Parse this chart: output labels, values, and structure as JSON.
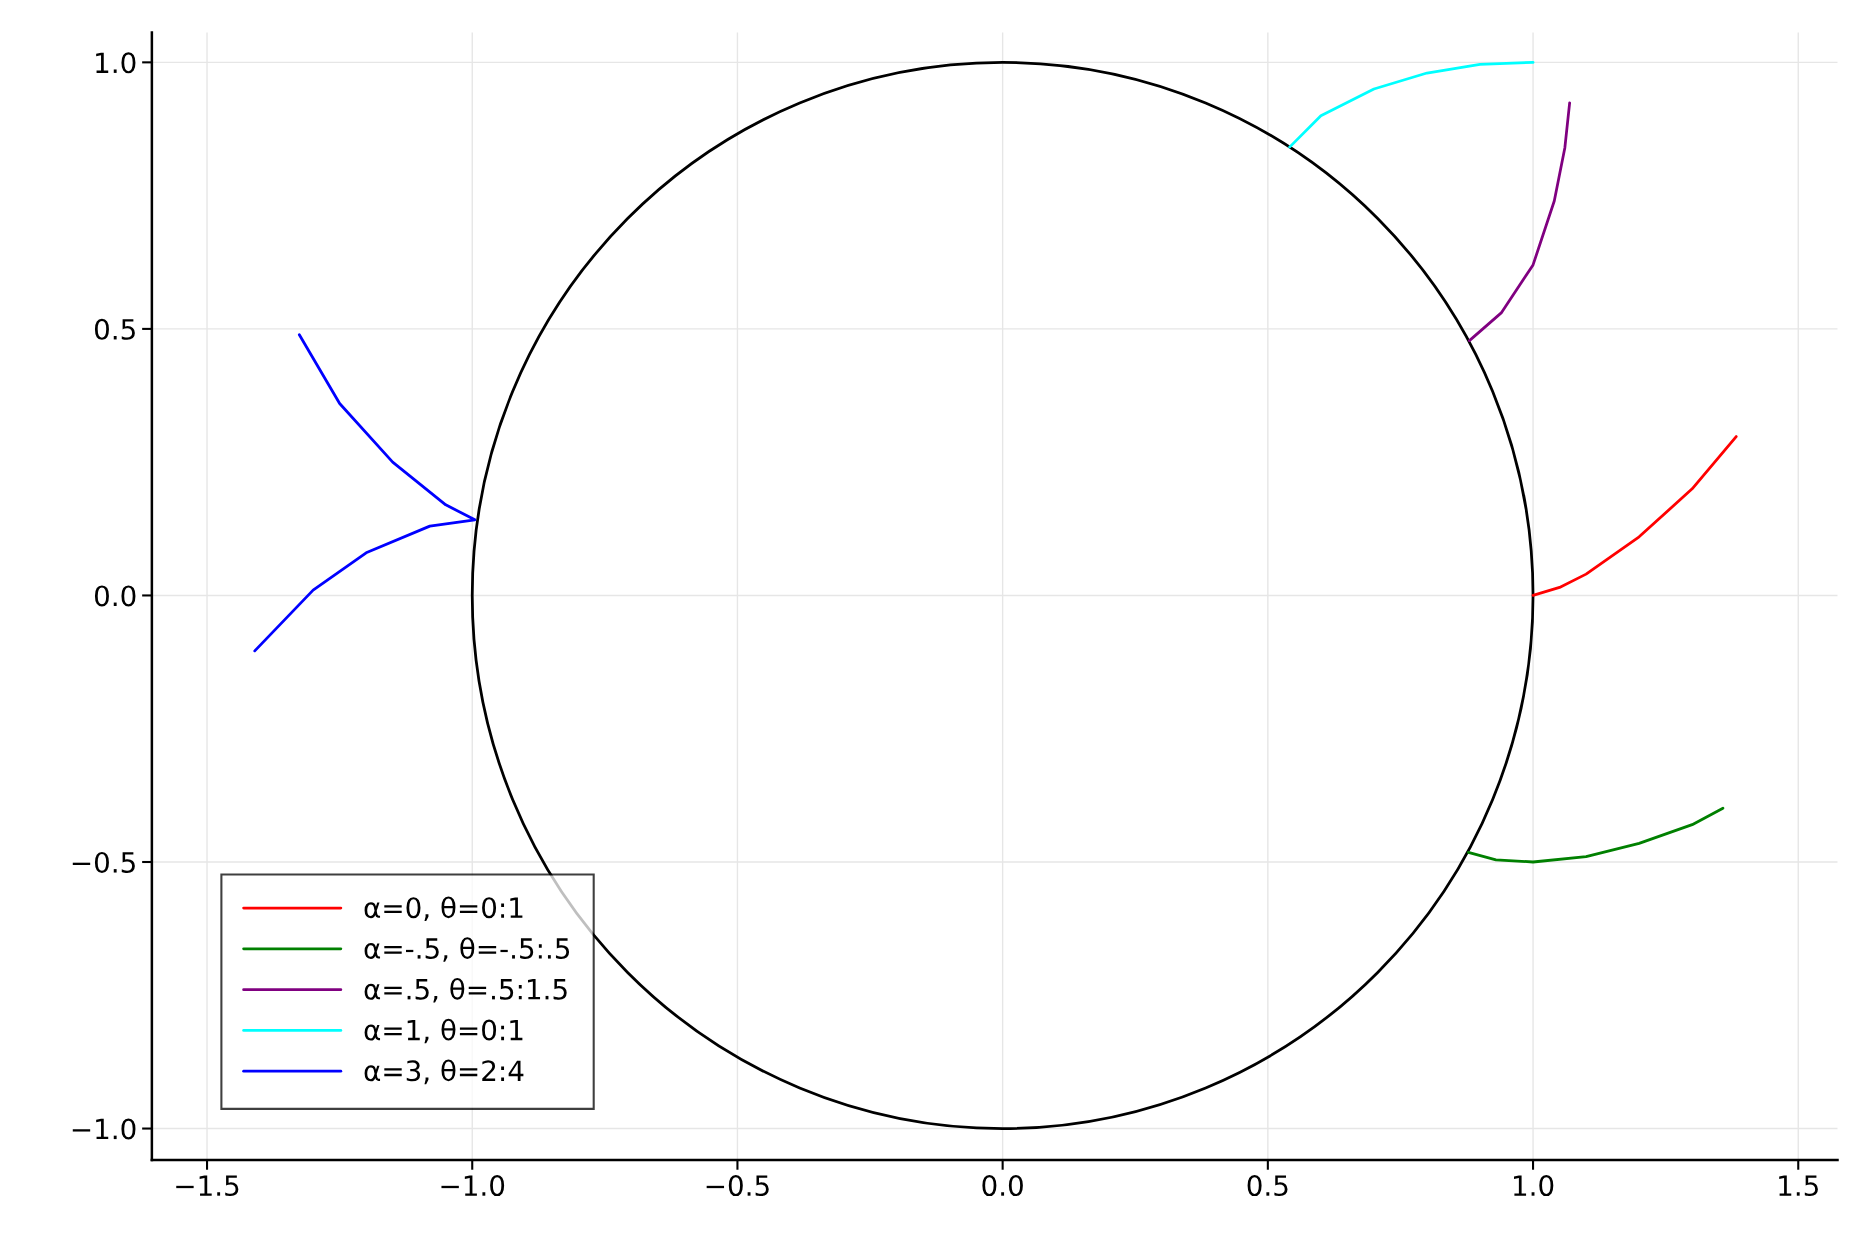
{
  "chart_data": {
    "type": "line",
    "xlim": [
      -1.604,
      1.574
    ],
    "ylim": [
      -1.059,
      1.056
    ],
    "xticks": [
      {
        "value": -1.5,
        "label": "−1.5"
      },
      {
        "value": -1.0,
        "label": "−1.0"
      },
      {
        "value": -0.5,
        "label": "−0.5"
      },
      {
        "value": 0.0,
        "label": "0.0"
      },
      {
        "value": 0.5,
        "label": "0.5"
      },
      {
        "value": 1.0,
        "label": "1.0"
      },
      {
        "value": 1.5,
        "label": "1.5"
      }
    ],
    "yticks": [
      {
        "value": -1.0,
        "label": "−1.0"
      },
      {
        "value": -0.5,
        "label": "−0.5"
      },
      {
        "value": 0.0,
        "label": "0.0"
      },
      {
        "value": 0.5,
        "label": "0.5"
      },
      {
        "value": 1.0,
        "label": "1.0"
      }
    ],
    "grid": true,
    "legend": "bottom left",
    "series": [
      {
        "name": "α=0, θ=0:1",
        "color": "#ff0000",
        "x": [
          1.0,
          1.05,
          1.1,
          1.2,
          1.3,
          1.383
        ],
        "values": [
          0,
          0.015,
          0.04,
          0.11,
          0.2,
          0.298
        ]
      },
      {
        "name": "α=-.5, θ=-.5:.5",
        "color": "#008000",
        "x": [
          0.878,
          0.93,
          1.0,
          1.1,
          1.2,
          1.3,
          1.358
        ],
        "values": [
          -0.482,
          -0.496,
          -0.5,
          -0.49,
          -0.465,
          -0.43,
          -0.399
        ]
      },
      {
        "name": "α=.5, θ=.5:1.5",
        "color": "#800080",
        "x": [
          0.88,
          0.94,
          1.0,
          1.04,
          1.06,
          1.069
        ],
        "values": [
          0.478,
          0.53,
          0.62,
          0.74,
          0.84,
          0.924
        ]
      },
      {
        "name": "α=1, θ=0:1",
        "color": "#00ffff",
        "x": [
          0.541,
          0.6,
          0.7,
          0.8,
          0.9,
          1.0
        ],
        "values": [
          0.841,
          0.9,
          0.95,
          0.98,
          0.996,
          1.0
        ]
      },
      {
        "name": "α=3, θ=2:4",
        "color": "#0000ff",
        "x": [
          -1.326,
          -1.25,
          -1.15,
          -1.05,
          -0.995,
          -1.08,
          -1.2,
          -1.3,
          -1.41
        ],
        "values": [
          0.489,
          0.36,
          0.25,
          0.17,
          0.142,
          0.13,
          0.08,
          0.01,
          -0.104
        ]
      }
    ]
  }
}
